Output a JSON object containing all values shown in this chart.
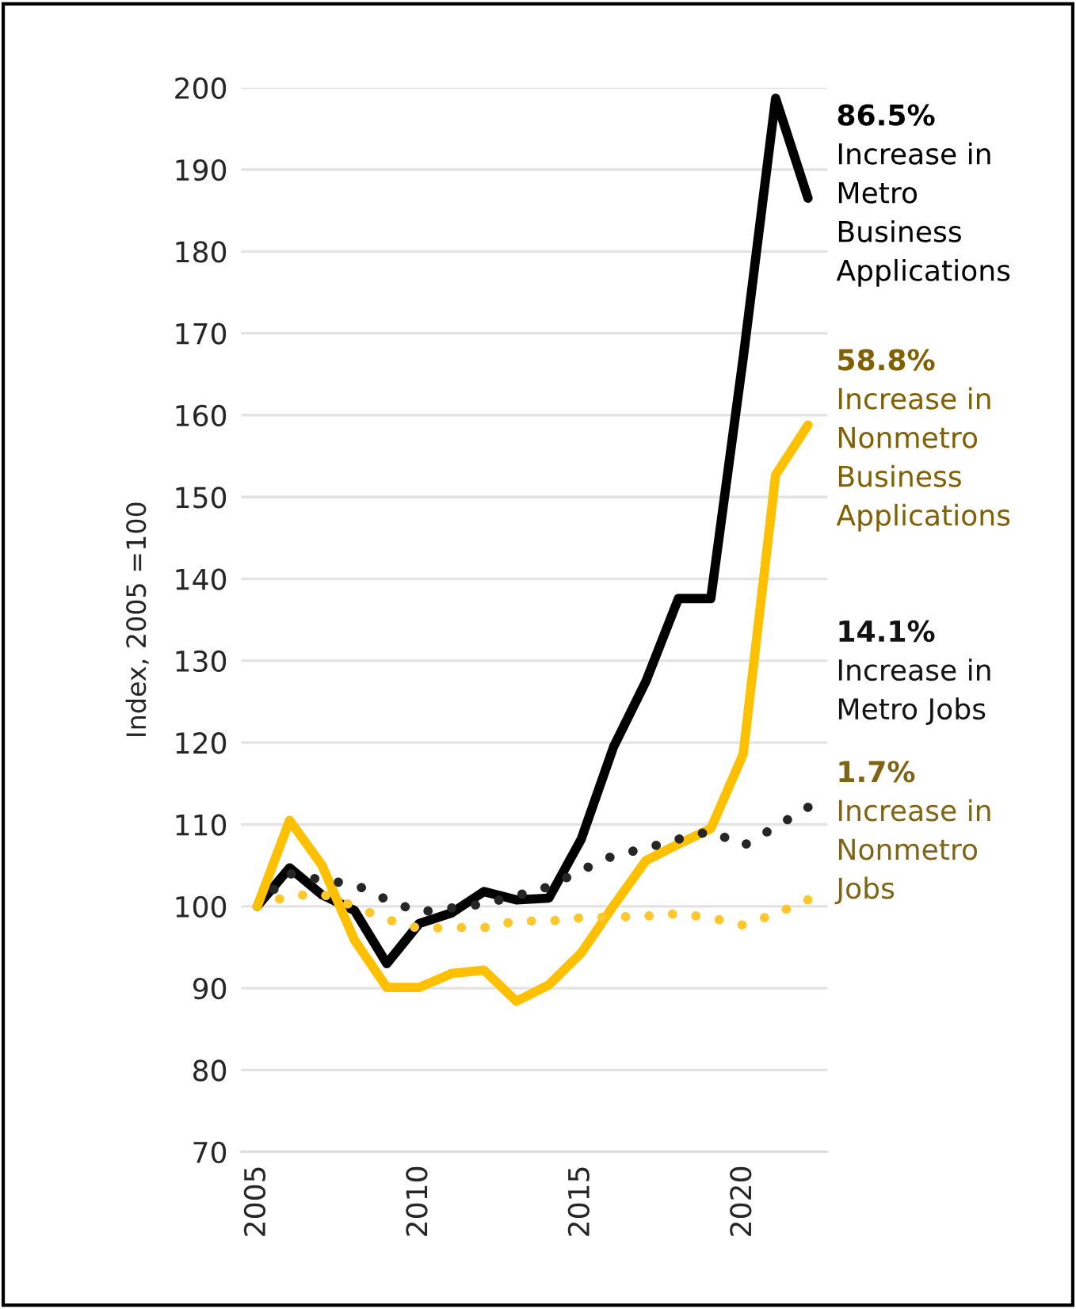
{
  "chart_data": {
    "type": "line",
    "ylabel": "Index, 2005 =100",
    "x": [
      2005,
      2006,
      2007,
      2008,
      2009,
      2010,
      2011,
      2012,
      2013,
      2014,
      2015,
      2016,
      2017,
      2018,
      2019,
      2020,
      2021,
      2022
    ],
    "series": [
      {
        "color": "#000000",
        "line_style": "solid",
        "values": [
          100,
          104.7,
          101.4,
          99.5,
          93,
          97.9,
          99.2,
          101.8,
          100.8,
          101,
          108.2,
          119.5,
          127.5,
          137.6,
          137.6,
          167,
          198.7,
          186.5
        ]
      },
      {
        "color": "#ffc000",
        "line_style": "solid",
        "values": [
          100,
          110.5,
          105,
          95.9,
          90.1,
          90.1,
          91.8,
          92.2,
          88.4,
          90.4,
          94.3,
          100.1,
          105.6,
          107.6,
          109.5,
          118.6,
          152.7,
          158.8
        ]
      },
      {
        "color": "#262626",
        "line_style": "dotted",
        "values": [
          100,
          104,
          103.2,
          102.7,
          100.8,
          99.3,
          99.8,
          100.3,
          101.3,
          102.4,
          104.4,
          106.2,
          107.1,
          108.2,
          109.2,
          107.4,
          109.7,
          112.1
        ]
      },
      {
        "color": "#ffc72c",
        "line_style": "dotted",
        "values": [
          100,
          101.3,
          101.5,
          100,
          98.4,
          97.3,
          97.4,
          97.4,
          98.2,
          98.2,
          98.6,
          98.7,
          98.8,
          99.1,
          98.6,
          97.7,
          99.1,
          100.8
        ]
      }
    ],
    "annotations": [
      "86.5%\nIncrease in\nMetro\nBusiness\nApplications",
      "58.8%\nIncrease in\nNonmetro\nBusiness\nApplications",
      "14.1%\nIncrease in\nMetro Jobs",
      "1.7%\nIncrease in\nNonmetro\nJobs"
    ],
    "xlim": [
      2004.5,
      2022.6
    ],
    "xticks": [
      2005,
      2010,
      2015,
      2020
    ],
    "ylim": [
      70,
      200
    ],
    "yticks": [
      70,
      80,
      90,
      100,
      110,
      120,
      130,
      140,
      150,
      160,
      170,
      180,
      190,
      200
    ],
    "grid": "y",
    "marker": "none"
  }
}
